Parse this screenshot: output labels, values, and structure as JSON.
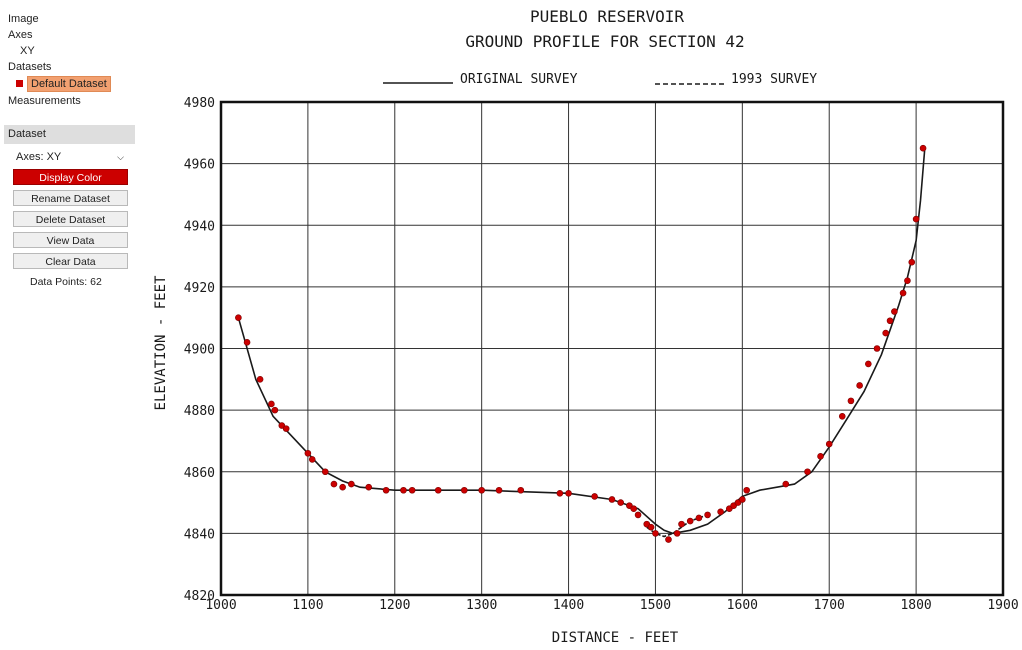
{
  "sidebar": {
    "tree": {
      "image": "Image",
      "axes": "Axes",
      "axes_child": "XY",
      "datasets": "Datasets",
      "dataset_item": "Default Dataset",
      "measurements": "Measurements"
    },
    "dataset_color": "#cc0000",
    "panel_title": "Dataset",
    "axes_select": {
      "label": "Axes:",
      "value": "XY"
    },
    "buttons": {
      "display_color": "Display Color",
      "rename": "Rename Dataset",
      "delete": "Delete Dataset",
      "view": "View Data",
      "clear": "Clear Data"
    },
    "data_points": {
      "label": "Data Points:",
      "value": "62"
    }
  },
  "chart_data": {
    "type": "line",
    "title": "PUEBLO RESERVOIR",
    "subtitle": "GROUND PROFILE FOR SECTION 42",
    "xlabel": "DISTANCE - FEET",
    "ylabel": "ELEVATION - FEET",
    "xlim": [
      1000,
      1900
    ],
    "ylim": [
      4820,
      4980
    ],
    "xticks": [
      "1000",
      "1100",
      "1200",
      "1300",
      "1400",
      "1500",
      "1600",
      "1700",
      "1800",
      "1900"
    ],
    "yticks": [
      "4820",
      "4840",
      "4860",
      "4880",
      "4900",
      "4920",
      "4940",
      "4960",
      "4980"
    ],
    "grid": true,
    "legend": {
      "placement": "top",
      "entries": [
        "ORIGINAL SURVEY",
        "1993 SURVEY"
      ]
    },
    "series": [
      {
        "name": "ORIGINAL SURVEY",
        "x": [
          1020,
          1040,
          1060,
          1080,
          1100,
          1120,
          1140,
          1160,
          1200,
          1300,
          1400,
          1450,
          1480,
          1500,
          1510,
          1520,
          1540,
          1560,
          1580,
          1600,
          1620,
          1660,
          1680,
          1700,
          1720,
          1740,
          1760,
          1780,
          1790,
          1800,
          1805,
          1810
        ],
        "y": [
          4910,
          4890,
          4878,
          4872,
          4866,
          4860,
          4857,
          4855,
          4854,
          4854,
          4853,
          4851,
          4848,
          4843,
          4841,
          4840,
          4841,
          4843,
          4847,
          4852,
          4854,
          4856,
          4860,
          4868,
          4877,
          4886,
          4898,
          4914,
          4923,
          4935,
          4948,
          4965
        ]
      },
      {
        "name": "1993 SURVEY",
        "x": [
          1490,
          1500,
          1510,
          1520,
          1530,
          1540,
          1560
        ],
        "y": [
          4842,
          4840,
          4839,
          4840,
          4842,
          4844,
          4846
        ]
      }
    ],
    "points": {
      "x": [
        1020,
        1030,
        1045,
        1058,
        1062,
        1070,
        1075,
        1100,
        1105,
        1120,
        1130,
        1140,
        1150,
        1170,
        1190,
        1210,
        1220,
        1250,
        1280,
        1300,
        1320,
        1345,
        1390,
        1400,
        1430,
        1450,
        1460,
        1470,
        1475,
        1480,
        1490,
        1495,
        1500,
        1515,
        1525,
        1530,
        1540,
        1550,
        1560,
        1575,
        1585,
        1590,
        1595,
        1600,
        1605,
        1650,
        1675,
        1690,
        1700,
        1715,
        1725,
        1735,
        1745,
        1755,
        1765,
        1770,
        1775,
        1785,
        1790,
        1795,
        1800,
        1808
      ],
      "y": [
        4910,
        4902,
        4890,
        4882,
        4880,
        4875,
        4874,
        4866,
        4864,
        4860,
        4856,
        4855,
        4856,
        4855,
        4854,
        4854,
        4854,
        4854,
        4854,
        4854,
        4854,
        4854,
        4853,
        4853,
        4852,
        4851,
        4850,
        4849,
        4848,
        4846,
        4843,
        4842,
        4840,
        4838,
        4840,
        4843,
        4844,
        4845,
        4846,
        4847,
        4848,
        4849,
        4850,
        4851,
        4854,
        4856,
        4860,
        4865,
        4869,
        4878,
        4883,
        4888,
        4895,
        4900,
        4905,
        4909,
        4912,
        4918,
        4922,
        4928,
        4942,
        4965
      ]
    },
    "point_color": "#cc0000"
  }
}
